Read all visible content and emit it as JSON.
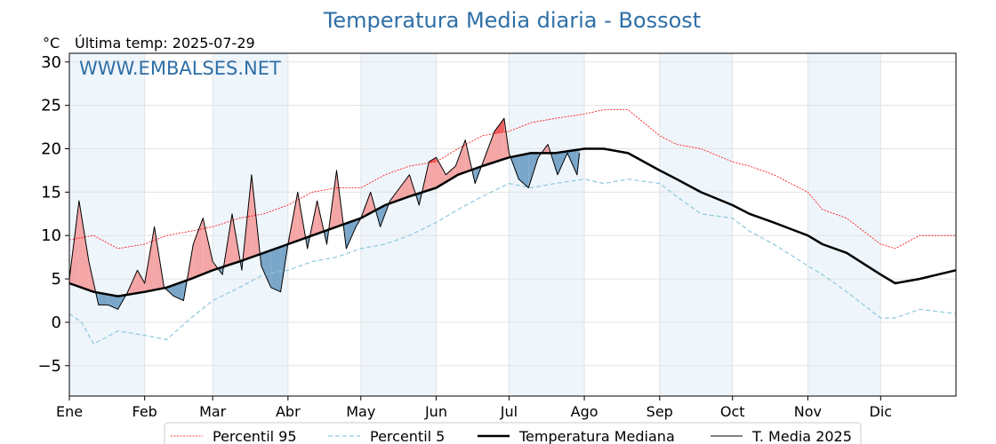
{
  "chart_data": {
    "type": "line",
    "title": "Temperatura Media diaria - Bossost",
    "unit_label": "°C",
    "last_temp_label": "Última temp: 2025-07-29",
    "watermark": "WWW.EMBALSES.NET",
    "ylim": [
      -8.5,
      31
    ],
    "yticks": [
      -5,
      0,
      5,
      10,
      15,
      20,
      25,
      30
    ],
    "ytick_labels": [
      "−5",
      "0",
      "5",
      "10",
      "15",
      "20",
      "25",
      "30"
    ],
    "xlim": [
      0,
      365
    ],
    "months": [
      "Ene",
      "Feb",
      "Mar",
      "Abr",
      "May",
      "Jun",
      "Jul",
      "Ago",
      "Sep",
      "Oct",
      "Nov",
      "Dic"
    ],
    "month_starts": [
      0,
      31,
      59,
      90,
      120,
      151,
      181,
      212,
      243,
      273,
      304,
      334
    ],
    "grid": true,
    "legend_position": "bottom",
    "colors": {
      "title": "#2e6fa7",
      "p95": "#ff0000",
      "p5": "#8ec9dc",
      "median": "#000000",
      "current": "#000000",
      "above_fill": "#f4a6a6",
      "above_strong": "#f06060",
      "below_fill": "#7aa6c9",
      "band": "#eef5fb"
    },
    "series": [
      {
        "name": "Percentil 95",
        "key": "p95",
        "style": "dotted",
        "x": [
          0,
          10,
          20,
          31,
          40,
          50,
          59,
          70,
          80,
          90,
          100,
          110,
          120,
          130,
          140,
          151,
          160,
          170,
          181,
          190,
          200,
          212,
          220,
          230,
          243,
          250,
          260,
          273,
          280,
          290,
          304,
          310,
          320,
          334,
          340,
          350,
          365
        ],
        "values": [
          9.5,
          10.0,
          8.5,
          9.0,
          10.0,
          10.5,
          11.0,
          12.0,
          12.5,
          13.5,
          15.0,
          15.5,
          15.5,
          17.0,
          18.0,
          18.5,
          20.0,
          21.5,
          22.0,
          23.0,
          23.5,
          24.0,
          24.5,
          24.5,
          21.5,
          20.5,
          20.0,
          18.5,
          18.0,
          17.0,
          15.0,
          13.0,
          12.0,
          9.0,
          8.5,
          10.0,
          10.0
        ]
      },
      {
        "name": "Percentil 5",
        "key": "p5",
        "style": "dashed",
        "x": [
          0,
          5,
          10,
          20,
          31,
          40,
          50,
          59,
          70,
          80,
          90,
          100,
          110,
          120,
          130,
          140,
          151,
          160,
          170,
          181,
          190,
          200,
          212,
          220,
          230,
          243,
          250,
          260,
          273,
          280,
          290,
          304,
          310,
          320,
          334,
          340,
          350,
          365
        ],
        "values": [
          1.0,
          0.0,
          -2.5,
          -1.0,
          -1.5,
          -2.0,
          0.5,
          2.5,
          4.0,
          5.5,
          6.0,
          7.0,
          7.5,
          8.5,
          9.0,
          10.0,
          11.5,
          13.0,
          14.5,
          16.0,
          15.5,
          16.0,
          16.5,
          16.0,
          16.5,
          16.0,
          14.5,
          12.5,
          12.0,
          10.5,
          9.0,
          6.5,
          5.5,
          3.5,
          0.5,
          0.5,
          1.5,
          1.0
        ]
      },
      {
        "name": "Temperatura Mediana",
        "key": "median",
        "style": "solid-thick",
        "x": [
          0,
          10,
          20,
          31,
          40,
          50,
          59,
          70,
          80,
          90,
          100,
          110,
          120,
          130,
          140,
          151,
          160,
          170,
          181,
          190,
          200,
          212,
          220,
          230,
          243,
          250,
          260,
          273,
          280,
          290,
          304,
          310,
          320,
          334,
          340,
          350,
          365
        ],
        "values": [
          4.5,
          3.5,
          3.0,
          3.5,
          4.0,
          5.0,
          6.0,
          7.0,
          8.0,
          9.0,
          10.0,
          11.0,
          12.0,
          13.5,
          14.5,
          15.5,
          17.0,
          18.0,
          19.0,
          19.5,
          19.5,
          20.0,
          20.0,
          19.5,
          17.5,
          16.5,
          15.0,
          13.5,
          12.5,
          11.5,
          10.0,
          9.0,
          8.0,
          5.5,
          4.5,
          5.0,
          6.0
        ]
      },
      {
        "name": "T. Media 2025",
        "key": "current",
        "style": "solid",
        "x": [
          0,
          4,
          8,
          12,
          16,
          20,
          24,
          28,
          31,
          35,
          39,
          43,
          47,
          51,
          55,
          59,
          63,
          67,
          71,
          75,
          79,
          83,
          87,
          90,
          94,
          98,
          102,
          106,
          110,
          114,
          118,
          120,
          124,
          128,
          132,
          136,
          140,
          144,
          148,
          151,
          155,
          159,
          163,
          167,
          171,
          175,
          179,
          181,
          185,
          189,
          193,
          197,
          201,
          205,
          209,
          210
        ],
        "values": [
          5.0,
          14.0,
          7.0,
          2.0,
          2.0,
          1.5,
          3.5,
          6.0,
          4.5,
          11.0,
          4.0,
          3.0,
          2.5,
          9.0,
          12.0,
          7.0,
          5.5,
          12.5,
          6.0,
          17.0,
          6.5,
          4.0,
          3.5,
          9.0,
          15.0,
          8.5,
          14.0,
          9.0,
          17.5,
          8.5,
          11.0,
          12.0,
          15.0,
          11.0,
          14.0,
          15.5,
          17.0,
          13.5,
          18.5,
          19.0,
          17.0,
          18.0,
          21.0,
          16.0,
          19.0,
          22.0,
          23.5,
          19.5,
          16.5,
          15.5,
          19.0,
          20.5,
          17.0,
          19.5,
          17.0,
          19.5
        ]
      }
    ],
    "legend": [
      "Percentil 95",
      "Percentil 5",
      "Temperatura Mediana",
      "T. Media 2025"
    ]
  }
}
